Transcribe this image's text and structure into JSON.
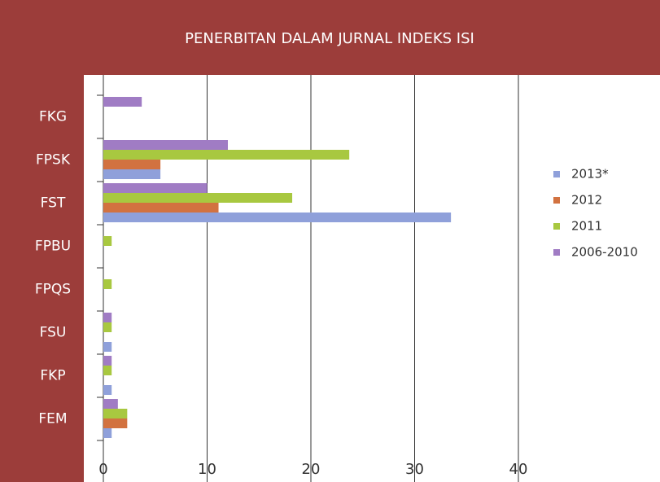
{
  "chart_data": {
    "type": "hbar",
    "title": "PENERBITAN DALAM JURNAL INDEKS ISI",
    "categories": [
      "FKG",
      "FPSK",
      "FST",
      "FPBU",
      "FPQS",
      "FSU",
      "FKP",
      "FEM"
    ],
    "series": [
      {
        "name": "2013*",
        "color": "#8fa0da",
        "values": [
          0,
          5.5,
          33.5,
          0,
          0,
          0.8,
          0.8,
          0.8
        ]
      },
      {
        "name": "2012",
        "color": "#d27240",
        "values": [
          0,
          5.5,
          11.1,
          0,
          0,
          0,
          0,
          2.3
        ]
      },
      {
        "name": "2011",
        "color": "#a8c840",
        "values": [
          0,
          23.7,
          18.2,
          0.8,
          0.8,
          0.8,
          0.8,
          2.3
        ]
      },
      {
        "name": "2006-2010",
        "color": "#a07cc4",
        "values": [
          3.7,
          12,
          10,
          0,
          0,
          0.8,
          0.8,
          1.4
        ]
      }
    ],
    "xlim": [
      0,
      40
    ],
    "xticks": [
      0,
      10,
      20,
      30,
      40
    ],
    "grid": true
  }
}
